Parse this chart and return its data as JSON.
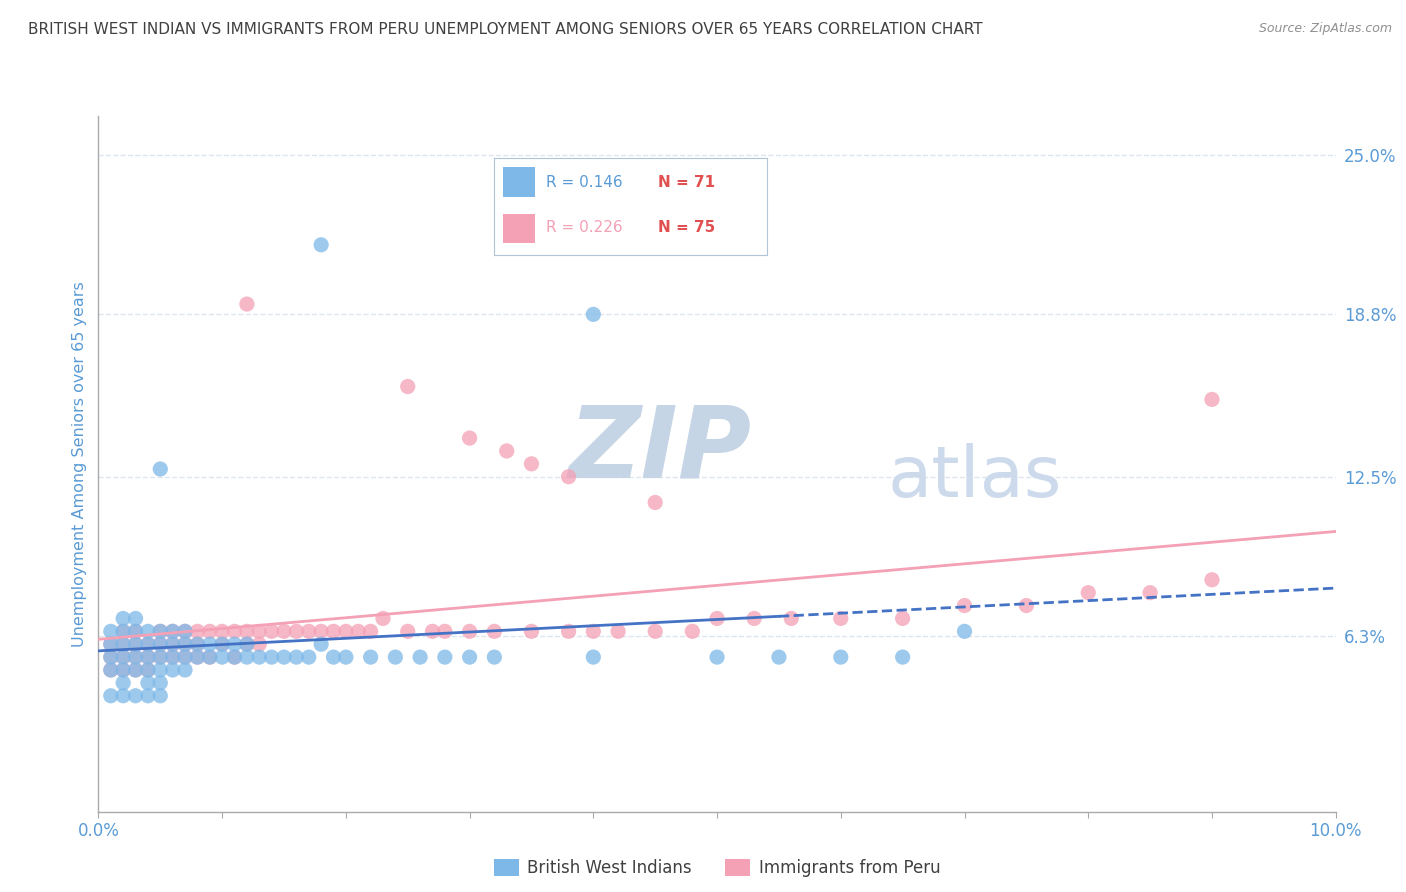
{
  "title": "BRITISH WEST INDIAN VS IMMIGRANTS FROM PERU UNEMPLOYMENT AMONG SENIORS OVER 65 YEARS CORRELATION CHART",
  "source": "Source: ZipAtlas.com",
  "ylabel": "Unemployment Among Seniors over 65 years",
  "xlim": [
    0.0,
    0.1
  ],
  "ylim": [
    -0.005,
    0.265
  ],
  "xticks": [
    0.0,
    0.01,
    0.02,
    0.03,
    0.04,
    0.05,
    0.06,
    0.07,
    0.08,
    0.09,
    0.1
  ],
  "xtick_labels": [
    "0.0%",
    "",
    "",
    "",
    "",
    "",
    "",
    "",
    "",
    "",
    "10.0%"
  ],
  "ytick_labels": [
    "6.3%",
    "12.5%",
    "18.8%",
    "25.0%"
  ],
  "yticks": [
    0.063,
    0.125,
    0.188,
    0.25
  ],
  "blue_R": 0.146,
  "blue_N": 71,
  "pink_R": 0.226,
  "pink_N": 75,
  "blue_color": "#7db8e8",
  "pink_color": "#f4a0b5",
  "blue_legend": "British West Indians",
  "pink_legend": "Immigrants from Peru",
  "watermark_zip_color": "#c5d5e5",
  "watermark_atlas_color": "#ccdaec",
  "grid_color": "#dde5ef",
  "axis_label_color": "#5b9bd5",
  "title_color": "#404040",
  "title_fontsize": 11,
  "background_color": "#ffffff",
  "legend_border_color": "#b0c4d8",
  "red_text_color": "#e05050",
  "blue_scatter_x": [
    0.001,
    0.001,
    0.001,
    0.001,
    0.001,
    0.002,
    0.002,
    0.002,
    0.002,
    0.002,
    0.002,
    0.002,
    0.003,
    0.003,
    0.003,
    0.003,
    0.003,
    0.003,
    0.004,
    0.004,
    0.004,
    0.004,
    0.004,
    0.004,
    0.005,
    0.005,
    0.005,
    0.005,
    0.005,
    0.005,
    0.006,
    0.006,
    0.006,
    0.006,
    0.007,
    0.007,
    0.007,
    0.007,
    0.008,
    0.008,
    0.009,
    0.009,
    0.01,
    0.01,
    0.011,
    0.011,
    0.012,
    0.012,
    0.013,
    0.014,
    0.015,
    0.016,
    0.017,
    0.018,
    0.019,
    0.02,
    0.022,
    0.024,
    0.026,
    0.028,
    0.03,
    0.032,
    0.04,
    0.05,
    0.055,
    0.06,
    0.065,
    0.07,
    0.018,
    0.005,
    0.04
  ],
  "blue_scatter_y": [
    0.055,
    0.06,
    0.05,
    0.065,
    0.04,
    0.055,
    0.06,
    0.05,
    0.065,
    0.04,
    0.07,
    0.045,
    0.055,
    0.06,
    0.05,
    0.065,
    0.04,
    0.07,
    0.055,
    0.06,
    0.05,
    0.065,
    0.04,
    0.045,
    0.055,
    0.06,
    0.05,
    0.065,
    0.04,
    0.045,
    0.055,
    0.06,
    0.05,
    0.065,
    0.055,
    0.06,
    0.05,
    0.065,
    0.055,
    0.06,
    0.055,
    0.06,
    0.055,
    0.06,
    0.055,
    0.06,
    0.055,
    0.06,
    0.055,
    0.055,
    0.055,
    0.055,
    0.055,
    0.06,
    0.055,
    0.055,
    0.055,
    0.055,
    0.055,
    0.055,
    0.055,
    0.055,
    0.055,
    0.055,
    0.055,
    0.055,
    0.055,
    0.065,
    0.215,
    0.128,
    0.188
  ],
  "pink_scatter_x": [
    0.001,
    0.001,
    0.001,
    0.002,
    0.002,
    0.002,
    0.002,
    0.003,
    0.003,
    0.003,
    0.003,
    0.004,
    0.004,
    0.004,
    0.005,
    0.005,
    0.005,
    0.006,
    0.006,
    0.006,
    0.007,
    0.007,
    0.007,
    0.008,
    0.008,
    0.008,
    0.009,
    0.009,
    0.01,
    0.01,
    0.011,
    0.011,
    0.012,
    0.012,
    0.013,
    0.013,
    0.014,
    0.015,
    0.016,
    0.017,
    0.018,
    0.019,
    0.02,
    0.021,
    0.022,
    0.023,
    0.025,
    0.027,
    0.028,
    0.03,
    0.032,
    0.035,
    0.038,
    0.04,
    0.042,
    0.045,
    0.048,
    0.05,
    0.053,
    0.056,
    0.06,
    0.065,
    0.07,
    0.075,
    0.08,
    0.085,
    0.09,
    0.012,
    0.025,
    0.03,
    0.033,
    0.035,
    0.038,
    0.045,
    0.09
  ],
  "pink_scatter_y": [
    0.055,
    0.06,
    0.05,
    0.055,
    0.06,
    0.05,
    0.065,
    0.055,
    0.06,
    0.05,
    0.065,
    0.055,
    0.06,
    0.05,
    0.055,
    0.06,
    0.065,
    0.055,
    0.06,
    0.065,
    0.055,
    0.06,
    0.065,
    0.055,
    0.06,
    0.065,
    0.055,
    0.065,
    0.06,
    0.065,
    0.055,
    0.065,
    0.06,
    0.065,
    0.06,
    0.065,
    0.065,
    0.065,
    0.065,
    0.065,
    0.065,
    0.065,
    0.065,
    0.065,
    0.065,
    0.07,
    0.065,
    0.065,
    0.065,
    0.065,
    0.065,
    0.065,
    0.065,
    0.065,
    0.065,
    0.065,
    0.065,
    0.07,
    0.07,
    0.07,
    0.07,
    0.07,
    0.075,
    0.075,
    0.08,
    0.08,
    0.085,
    0.192,
    0.16,
    0.14,
    0.135,
    0.13,
    0.125,
    0.115,
    0.155
  ]
}
